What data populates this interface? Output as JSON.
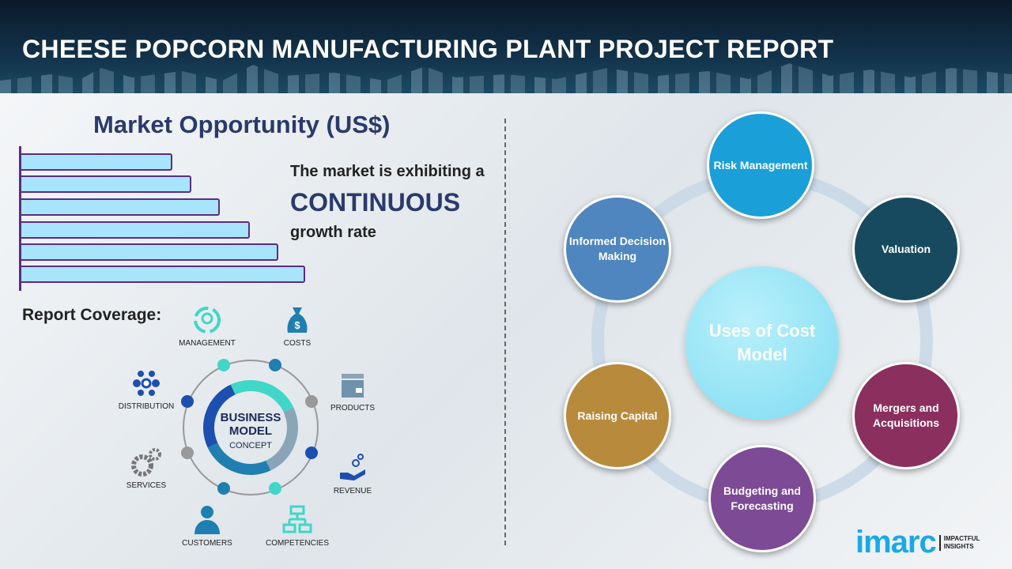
{
  "header": {
    "title": "CHEESE POPCORN MANUFACTURING PLANT PROJECT REPORT"
  },
  "market": {
    "title": "Market Opportunity (US$)",
    "line1": "The market is exhibiting a",
    "line2": "CONTINUOUS",
    "line3": "growth rate",
    "trend": "increasing"
  },
  "coverage": {
    "title": "Report Coverage:",
    "center_line1": "BUSINESS",
    "center_line2": "MODEL",
    "center_line3": "CONCEPT",
    "items": [
      "MANAGEMENT",
      "COSTS",
      "PRODUCTS",
      "REVENUE",
      "COMPETENCIES",
      "CUSTOMERS",
      "SERVICES",
      "DISTRIBUTION"
    ]
  },
  "cost_model": {
    "center": "Uses of Cost Model",
    "nodes": [
      {
        "label": "Risk Management",
        "color": "#1b9fd8"
      },
      {
        "label": "Valuation",
        "color": "#174a5e"
      },
      {
        "label": "Mergers and Acquisitions",
        "color": "#8a2f5e"
      },
      {
        "label": "Budgeting and Forecasting",
        "color": "#7d4a96"
      },
      {
        "label": "Raising Capital",
        "color": "#b88a3c"
      },
      {
        "label": "Informed Decision Making",
        "color": "#4f86bf"
      }
    ]
  },
  "logo": {
    "name": "imarc",
    "tagline1": "IMPACTFUL",
    "tagline2": "INSIGHTS"
  }
}
